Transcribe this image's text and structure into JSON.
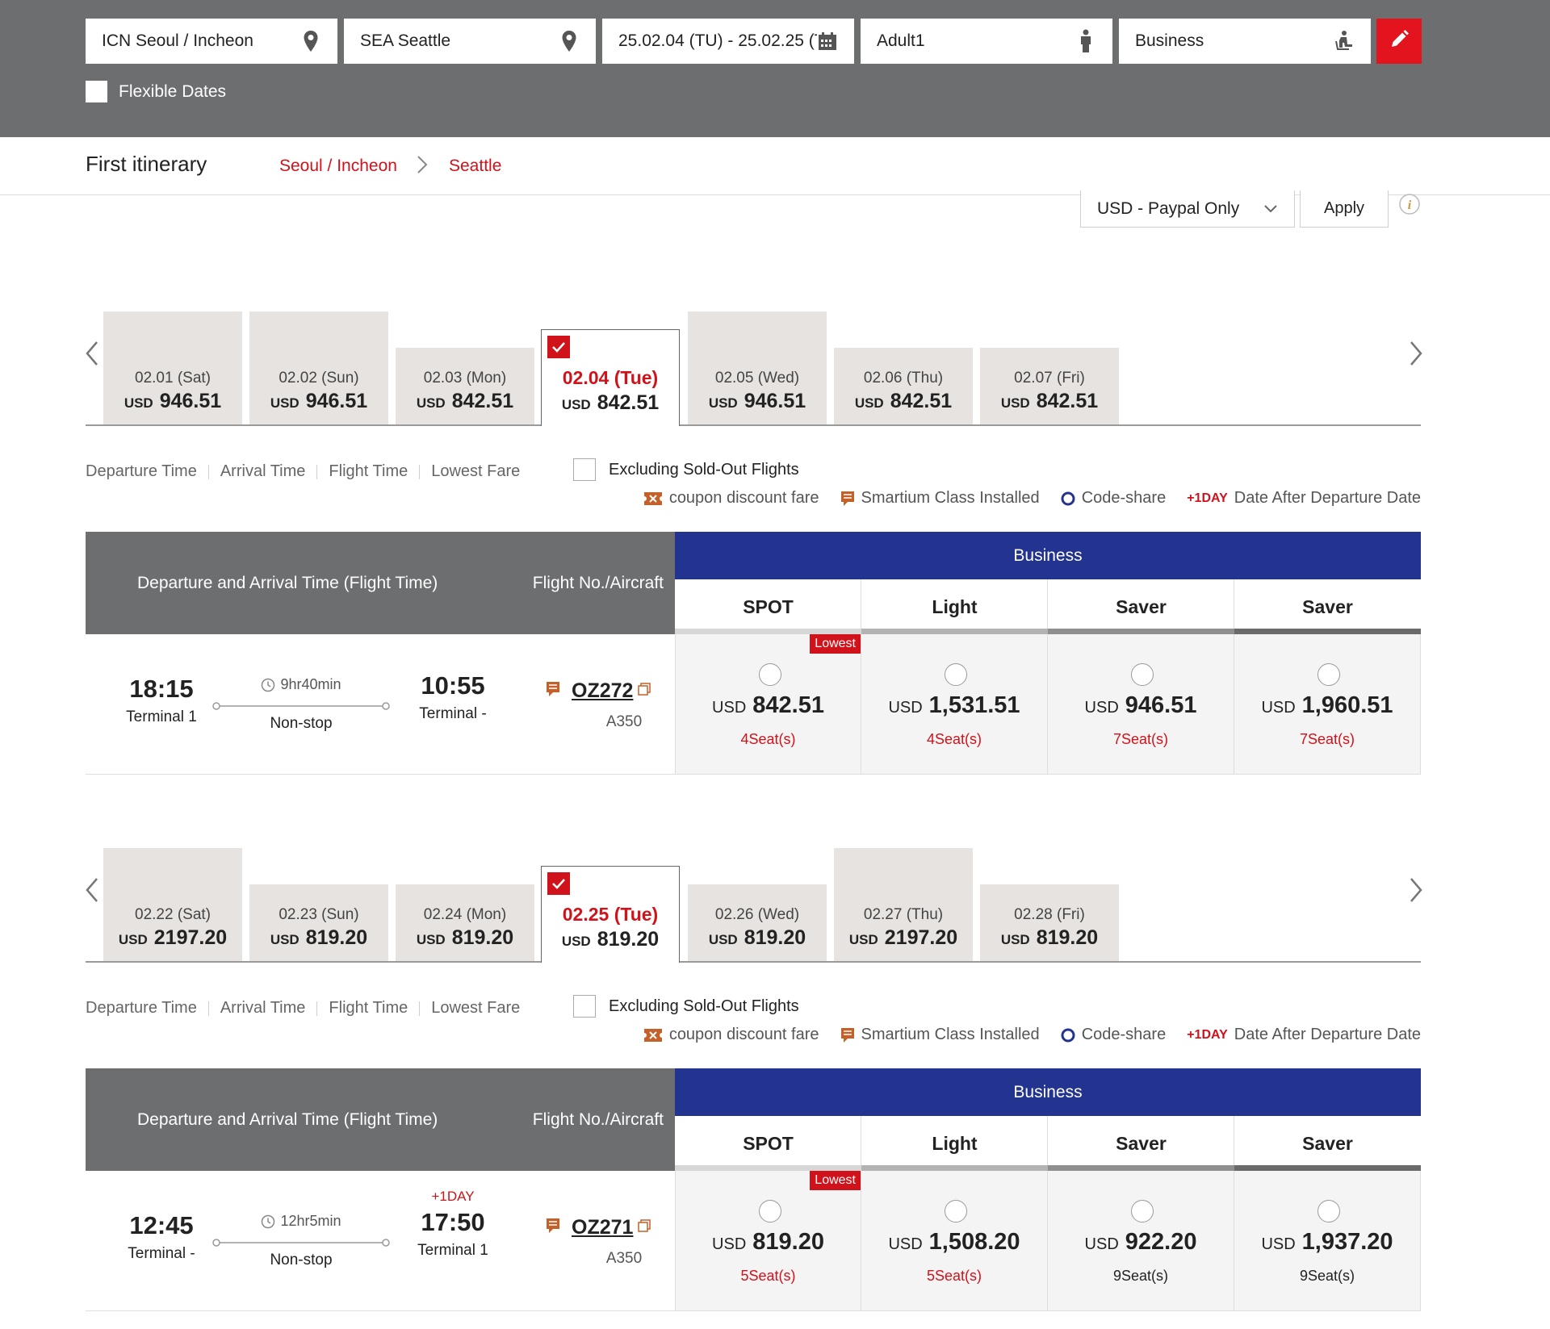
{
  "search": {
    "origin": "ICN Seoul / Incheon",
    "destination": "SEA Seattle",
    "dates": "25.02.04 (TU) - 25.02.25 (T...",
    "passengers": "Adult1",
    "cabin": "Business",
    "flexible_dates_label": "Flexible Dates",
    "icons": [
      "location-pin-icon",
      "calendar-icon",
      "person-icon",
      "seat-icon",
      "pencil-icon"
    ],
    "accent_color": "#e3141e"
  },
  "itinerary": {
    "title": "First itinerary",
    "from": "Seoul / Incheon",
    "to": "Seattle"
  },
  "currency": {
    "selected": "USD - Paypal Only",
    "apply_label": "Apply"
  },
  "outbound": {
    "dates": [
      {
        "date": "02.01 (Sat)",
        "currency": "USD",
        "price": "946.51",
        "level": "high",
        "selected": false
      },
      {
        "date": "02.02 (Sun)",
        "currency": "USD",
        "price": "946.51",
        "level": "high",
        "selected": false
      },
      {
        "date": "02.03 (Mon)",
        "currency": "USD",
        "price": "842.51",
        "level": "low",
        "selected": false
      },
      {
        "date": "02.04 (Tue)",
        "currency": "USD",
        "price": "842.51",
        "level": "low",
        "selected": true
      },
      {
        "date": "02.05 (Wed)",
        "currency": "USD",
        "price": "946.51",
        "level": "high",
        "selected": false
      },
      {
        "date": "02.06 (Thu)",
        "currency": "USD",
        "price": "842.51",
        "level": "low",
        "selected": false
      },
      {
        "date": "02.07 (Fri)",
        "currency": "USD",
        "price": "842.51",
        "level": "low",
        "selected": false
      }
    ],
    "sort": [
      "Departure Time",
      "Arrival Time",
      "Flight Time",
      "Lowest Fare"
    ],
    "exclude_label": "Excluding Sold-Out Flights",
    "legend": {
      "coupon": "coupon discount fare",
      "smartium": "Smartium Class Installed",
      "codeshare": "Code-share",
      "plus_day": "+1DAY",
      "plus_day_desc": "Date After Departure Date"
    },
    "table": {
      "col_times": "Departure and Arrival Time (Flight Time)",
      "col_flight": "Flight No./Aircraft",
      "class_name": "Business",
      "fare_types": [
        "SPOT",
        "Light",
        "Saver",
        "Saver"
      ],
      "flight": {
        "dep_time": "18:15",
        "dep_terminal": "Terminal 1",
        "duration": "9hr40min",
        "stops": "Non-stop",
        "arr_plus": "",
        "arr_time": "10:55",
        "arr_terminal": "Terminal -",
        "flight_no": "OZ272",
        "aircraft": "A350",
        "lowest_label": "Lowest",
        "fares": [
          {
            "currency": "USD",
            "price": "842.51",
            "seats": "4Seat(s)",
            "seats_red": true
          },
          {
            "currency": "USD",
            "price": "1,531.51",
            "seats": "4Seat(s)",
            "seats_red": true
          },
          {
            "currency": "USD",
            "price": "946.51",
            "seats": "7Seat(s)",
            "seats_red": true
          },
          {
            "currency": "USD",
            "price": "1,960.51",
            "seats": "7Seat(s)",
            "seats_red": true
          }
        ]
      }
    }
  },
  "inbound": {
    "dates": [
      {
        "date": "02.22 (Sat)",
        "currency": "USD",
        "price": "2197.20",
        "level": "high",
        "selected": false
      },
      {
        "date": "02.23 (Sun)",
        "currency": "USD",
        "price": "819.20",
        "level": "low",
        "selected": false
      },
      {
        "date": "02.24 (Mon)",
        "currency": "USD",
        "price": "819.20",
        "level": "low",
        "selected": false
      },
      {
        "date": "02.25 (Tue)",
        "currency": "USD",
        "price": "819.20",
        "level": "low",
        "selected": true
      },
      {
        "date": "02.26 (Wed)",
        "currency": "USD",
        "price": "819.20",
        "level": "low",
        "selected": false
      },
      {
        "date": "02.27 (Thu)",
        "currency": "USD",
        "price": "2197.20",
        "level": "high",
        "selected": false
      },
      {
        "date": "02.28 (Fri)",
        "currency": "USD",
        "price": "819.20",
        "level": "low",
        "selected": false
      }
    ],
    "sort": [
      "Departure Time",
      "Arrival Time",
      "Flight Time",
      "Lowest Fare"
    ],
    "exclude_label": "Excluding Sold-Out Flights",
    "legend": {
      "coupon": "coupon discount fare",
      "smartium": "Smartium Class Installed",
      "codeshare": "Code-share",
      "plus_day": "+1DAY",
      "plus_day_desc": "Date After Departure Date"
    },
    "table": {
      "col_times": "Departure and Arrival Time (Flight Time)",
      "col_flight": "Flight No./Aircraft",
      "class_name": "Business",
      "fare_types": [
        "SPOT",
        "Light",
        "Saver",
        "Saver"
      ],
      "flight": {
        "dep_time": "12:45",
        "dep_terminal": "Terminal -",
        "duration": "12hr5min",
        "stops": "Non-stop",
        "arr_plus": "+1DAY",
        "arr_time": "17:50",
        "arr_terminal": "Terminal 1",
        "flight_no": "OZ271",
        "aircraft": "A350",
        "lowest_label": "Lowest",
        "fares": [
          {
            "currency": "USD",
            "price": "819.20",
            "seats": "5Seat(s)",
            "seats_red": true
          },
          {
            "currency": "USD",
            "price": "1,508.20",
            "seats": "5Seat(s)",
            "seats_red": true
          },
          {
            "currency": "USD",
            "price": "922.20",
            "seats": "9Seat(s)",
            "seats_red": false
          },
          {
            "currency": "USD",
            "price": "1,937.20",
            "seats": "9Seat(s)",
            "seats_red": false
          }
        ]
      }
    }
  },
  "colors": {
    "header_gray": "#6d6e70",
    "business_blue": "#233490",
    "red": "#d0121b",
    "fare_bars": [
      "#d7d7d7",
      "#b3b3b3",
      "#8f8f8f",
      "#6a6a6a"
    ]
  }
}
